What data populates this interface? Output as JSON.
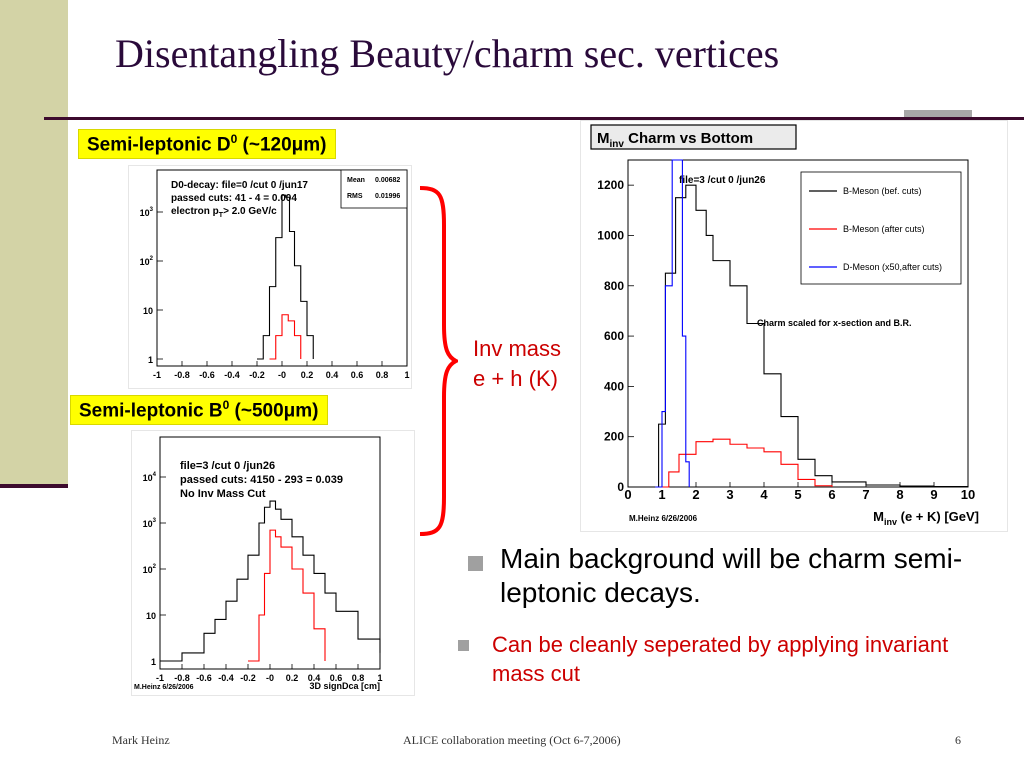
{
  "title": "Disentangling Beauty/charm sec. vertices",
  "label_d0": {
    "text": "Semi-leptonic D",
    "sup": "0",
    "suffix": " (~120μm)"
  },
  "label_b0": {
    "text": "Semi-leptonic B",
    "sup": "0",
    "suffix": " (~500μm)"
  },
  "inv_mass": {
    "line1": "Inv mass",
    "line2": "e + h (K)"
  },
  "bullets": {
    "main": "Main background will be charm semi-leptonic decays.",
    "sub": "Can be cleanly seperated by applying invariant mass cut"
  },
  "footer": {
    "left": "Mark Heinz",
    "center": "ALICE collaboration meeting (Oct 6-7,2006)",
    "right": "6"
  },
  "colors": {
    "accent": "#cc0000",
    "title": "#2a0a3a",
    "band": "#d3d3a6",
    "rule": "#3d0b2e",
    "label": "#ffff00"
  },
  "chart_data": [
    {
      "type": "line",
      "panel": "D0",
      "stats_text": [
        "D0-decay: file=0 /cut 0 /jun17",
        "passed cuts: 41 - 4 = 0.004",
        "electron p",
        "T",
        "> 2.0 GeV/c"
      ],
      "stats_box": {
        "mean_label": "Mean",
        "mean": "0.00682",
        "rms_label": "RMS",
        "rms": "0.01996"
      },
      "xticks": [
        "-1",
        "-0.8",
        "-0.6",
        "-0.4",
        "-0.2",
        "-0",
        "0.2",
        "0.4",
        "0.6",
        "0.8",
        "1"
      ],
      "yticks": [
        {
          "base": "10",
          "exp": "3"
        },
        {
          "base": "10",
          "exp": "2"
        },
        {
          "base": "10",
          "exp": ""
        },
        {
          "base": "1",
          "exp": ""
        }
      ],
      "xlim": [
        -1,
        1
      ],
      "ylog": true,
      "series": [
        {
          "color": "#000000",
          "x": [
            -0.2,
            -0.15,
            -0.1,
            -0.05,
            0.0,
            0.03,
            0.06,
            0.1,
            0.15,
            0.2,
            0.25
          ],
          "y": [
            1,
            3,
            30,
            300,
            2200,
            2000,
            400,
            80,
            15,
            3,
            1
          ]
        },
        {
          "color": "#ff0000",
          "x": [
            -0.1,
            -0.05,
            0.0,
            0.05,
            0.1,
            0.15
          ],
          "y": [
            1,
            3,
            8,
            6,
            3,
            1
          ]
        }
      ]
    },
    {
      "type": "line",
      "panel": "B0",
      "stats_text": [
        "file=3 /cut 0 /jun26",
        "passed cuts: 4150 - 293 = 0.039",
        "No Inv Mass Cut"
      ],
      "xticks": [
        "-1",
        "-0.8",
        "-0.6",
        "-0.4",
        "-0.2",
        "-0",
        "0.2",
        "0.4",
        "0.6",
        "0.8",
        "1"
      ],
      "yticks": [
        {
          "base": "10",
          "exp": "4"
        },
        {
          "base": "10",
          "exp": "3"
        },
        {
          "base": "10",
          "exp": "2"
        },
        {
          "base": "10",
          "exp": ""
        },
        {
          "base": "1",
          "exp": ""
        }
      ],
      "xlabel": "3D signDca [cm]",
      "credit": "M.Heinz 6/26/2006",
      "xlim": [
        -1,
        1
      ],
      "ylog": true,
      "series": [
        {
          "color": "#000000",
          "x": [
            -1.0,
            -0.8,
            -0.6,
            -0.5,
            -0.4,
            -0.3,
            -0.2,
            -0.1,
            -0.05,
            0.0,
            0.05,
            0.1,
            0.2,
            0.3,
            0.4,
            0.5,
            0.6,
            0.8,
            1.0
          ],
          "y": [
            1,
            1.5,
            4,
            8,
            20,
            60,
            200,
            1000,
            2200,
            3000,
            2000,
            1200,
            500,
            200,
            80,
            30,
            12,
            3,
            1.5
          ]
        },
        {
          "color": "#ff0000",
          "x": [
            -0.2,
            -0.1,
            -0.05,
            0.0,
            0.05,
            0.1,
            0.2,
            0.3,
            0.4,
            0.5
          ],
          "y": [
            1,
            10,
            80,
            700,
            500,
            300,
            100,
            30,
            5,
            1
          ]
        }
      ]
    },
    {
      "type": "line",
      "panel": "Minv",
      "title": "M",
      "title_sub": "inv",
      "title_rest": " Charm vs Bottom",
      "stats_text": "file=3 /cut 0 /jun26",
      "note": "Charm scaled for x-section and B.R.",
      "credit": "M.Heinz 6/26/2006",
      "xlabel": "M",
      "xlabel_sub": "inv",
      "xlabel_rest": " (e + K) [GeV]",
      "xticks": [
        "0",
        "1",
        "2",
        "3",
        "4",
        "5",
        "6",
        "7",
        "8",
        "9",
        "10"
      ],
      "yticks": [
        "0",
        "200",
        "400",
        "600",
        "800",
        "1000",
        "1200"
      ],
      "xlim": [
        0,
        10
      ],
      "ylim": [
        0,
        1300
      ],
      "series": [
        {
          "name": "B-Meson (bef. cuts)",
          "color": "#000000",
          "x": [
            0.5,
            0.9,
            1.1,
            1.4,
            1.7,
            2.0,
            2.3,
            2.5,
            3.0,
            3.5,
            4.0,
            4.5,
            5.0,
            5.5,
            6.0,
            7.0,
            8.0,
            9.0,
            10.0
          ],
          "y": [
            0,
            250,
            850,
            1150,
            1200,
            1100,
            1000,
            900,
            800,
            650,
            450,
            280,
            110,
            45,
            20,
            8,
            4,
            2,
            0
          ]
        },
        {
          "name": "B-Meson (after cuts)",
          "color": "#ff0000",
          "x": [
            0.9,
            1.2,
            1.5,
            2.0,
            2.5,
            3.0,
            3.5,
            4.0,
            4.5,
            5.0,
            5.5,
            6.0
          ],
          "y": [
            0,
            60,
            130,
            180,
            190,
            170,
            155,
            140,
            90,
            30,
            5,
            0
          ]
        },
        {
          "name": "D-Meson (x50,after cuts)",
          "color": "#0000ff",
          "x": [
            0.8,
            1.0,
            1.1,
            1.3,
            1.5,
            1.6,
            1.7,
            1.8
          ],
          "y": [
            0,
            300,
            800,
            1300,
            1300,
            600,
            100,
            0
          ]
        }
      ]
    }
  ]
}
